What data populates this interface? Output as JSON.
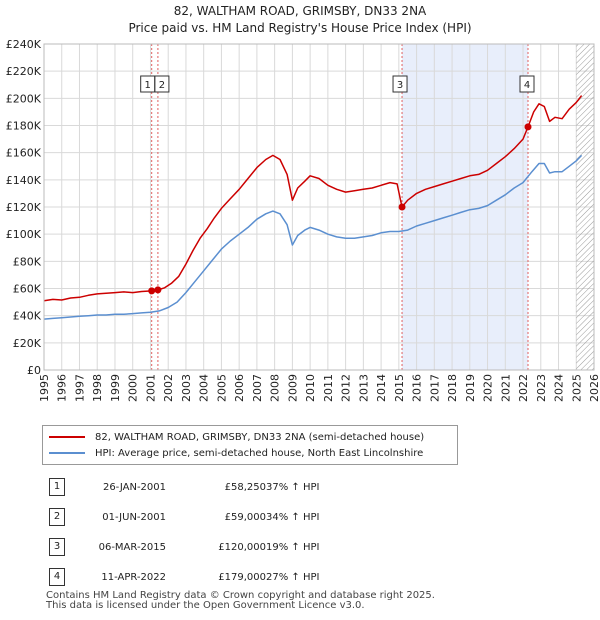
{
  "chart_data": {
    "type": "line",
    "title": "82, WALTHAM ROAD, GRIMSBY, DN33 2NA",
    "subtitle": "Price paid vs. HM Land Registry's House Price Index (HPI)",
    "xlim": [
      1995,
      2026
    ],
    "ylim": [
      0,
      240000
    ],
    "x_ticks": [
      "1995",
      "1996",
      "1997",
      "1998",
      "1999",
      "2000",
      "2001",
      "2002",
      "2003",
      "2004",
      "2005",
      "2006",
      "2007",
      "2008",
      "2009",
      "2010",
      "2011",
      "2012",
      "2013",
      "2014",
      "2015",
      "2016",
      "2017",
      "2018",
      "2019",
      "2020",
      "2021",
      "2022",
      "2023",
      "2024",
      "2025",
      "2026"
    ],
    "y_ticks": [
      {
        "value": 0,
        "label": "£0"
      },
      {
        "value": 20000,
        "label": "£20K"
      },
      {
        "value": 40000,
        "label": "£40K"
      },
      {
        "value": 60000,
        "label": "£60K"
      },
      {
        "value": 80000,
        "label": "£80K"
      },
      {
        "value": 100000,
        "label": "£100K"
      },
      {
        "value": 120000,
        "label": "£120K"
      },
      {
        "value": 140000,
        "label": "£140K"
      },
      {
        "value": 160000,
        "label": "£160K"
      },
      {
        "value": 180000,
        "label": "£180K"
      },
      {
        "value": 200000,
        "label": "£200K"
      },
      {
        "value": 220000,
        "label": "£220K"
      },
      {
        "value": 240000,
        "label": "£240K"
      }
    ],
    "grid": true,
    "shaded_ranges": [
      [
        2015.18,
        2022.28
      ]
    ],
    "hatched_from": 2025.0,
    "series": [
      {
        "name": "82, WALTHAM ROAD, GRIMSBY, DN33 2NA (semi-detached house)",
        "color": "#cc0000",
        "points": [
          [
            1995.0,
            51000
          ],
          [
            1995.5,
            52000
          ],
          [
            1996.0,
            51500
          ],
          [
            1996.5,
            53000
          ],
          [
            1997.0,
            53500
          ],
          [
            1997.5,
            55000
          ],
          [
            1998.0,
            56000
          ],
          [
            1998.5,
            56500
          ],
          [
            1999.0,
            57000
          ],
          [
            1999.5,
            57500
          ],
          [
            2000.0,
            57000
          ],
          [
            2000.5,
            57800
          ],
          [
            2001.07,
            58250
          ],
          [
            2001.42,
            59000
          ],
          [
            2001.8,
            60500
          ],
          [
            2002.2,
            64000
          ],
          [
            2002.6,
            69000
          ],
          [
            2003.0,
            78000
          ],
          [
            2003.4,
            88000
          ],
          [
            2003.8,
            97000
          ],
          [
            2004.2,
            104000
          ],
          [
            2004.6,
            112000
          ],
          [
            2005.0,
            119000
          ],
          [
            2005.5,
            126000
          ],
          [
            2006.0,
            133000
          ],
          [
            2006.5,
            141000
          ],
          [
            2007.0,
            149000
          ],
          [
            2007.5,
            155000
          ],
          [
            2007.9,
            158000
          ],
          [
            2008.3,
            155000
          ],
          [
            2008.7,
            144000
          ],
          [
            2009.0,
            125000
          ],
          [
            2009.3,
            134000
          ],
          [
            2009.7,
            139000
          ],
          [
            2010.0,
            143000
          ],
          [
            2010.5,
            141000
          ],
          [
            2011.0,
            136000
          ],
          [
            2011.5,
            133000
          ],
          [
            2012.0,
            131000
          ],
          [
            2012.5,
            132000
          ],
          [
            2013.0,
            133000
          ],
          [
            2013.5,
            134000
          ],
          [
            2014.0,
            136000
          ],
          [
            2014.5,
            138000
          ],
          [
            2014.9,
            137000
          ],
          [
            2015.18,
            120000
          ],
          [
            2015.5,
            125000
          ],
          [
            2016.0,
            130000
          ],
          [
            2016.5,
            133000
          ],
          [
            2017.0,
            135000
          ],
          [
            2017.5,
            137000
          ],
          [
            2018.0,
            139000
          ],
          [
            2018.5,
            141000
          ],
          [
            2019.0,
            143000
          ],
          [
            2019.5,
            144000
          ],
          [
            2020.0,
            147000
          ],
          [
            2020.5,
            152000
          ],
          [
            2021.0,
            157000
          ],
          [
            2021.5,
            163000
          ],
          [
            2022.0,
            170000
          ],
          [
            2022.28,
            179000
          ],
          [
            2022.6,
            190000
          ],
          [
            2022.9,
            196000
          ],
          [
            2023.2,
            194000
          ],
          [
            2023.5,
            183000
          ],
          [
            2023.8,
            186000
          ],
          [
            2024.2,
            185000
          ],
          [
            2024.6,
            192000
          ],
          [
            2025.0,
            197000
          ],
          [
            2025.3,
            202000
          ]
        ]
      },
      {
        "name": "HPI: Average price, semi-detached house, North East Lincolnshire",
        "color": "#5b8fd0",
        "points": [
          [
            1995.0,
            37500
          ],
          [
            1995.5,
            38000
          ],
          [
            1996.0,
            38500
          ],
          [
            1996.5,
            39000
          ],
          [
            1997.0,
            39500
          ],
          [
            1997.5,
            40000
          ],
          [
            1998.0,
            40500
          ],
          [
            1998.5,
            40500
          ],
          [
            1999.0,
            41000
          ],
          [
            1999.5,
            41000
          ],
          [
            2000.0,
            41500
          ],
          [
            2000.5,
            42000
          ],
          [
            2001.0,
            42500
          ],
          [
            2001.5,
            43500
          ],
          [
            2002.0,
            46000
          ],
          [
            2002.5,
            50000
          ],
          [
            2003.0,
            57000
          ],
          [
            2003.5,
            65000
          ],
          [
            2004.0,
            73000
          ],
          [
            2004.5,
            81000
          ],
          [
            2005.0,
            89000
          ],
          [
            2005.5,
            95000
          ],
          [
            2006.0,
            100000
          ],
          [
            2006.5,
            105000
          ],
          [
            2007.0,
            111000
          ],
          [
            2007.5,
            115000
          ],
          [
            2007.9,
            117000
          ],
          [
            2008.3,
            115000
          ],
          [
            2008.7,
            107000
          ],
          [
            2009.0,
            92000
          ],
          [
            2009.3,
            99000
          ],
          [
            2009.7,
            103000
          ],
          [
            2010.0,
            105000
          ],
          [
            2010.5,
            103000
          ],
          [
            2011.0,
            100000
          ],
          [
            2011.5,
            98000
          ],
          [
            2012.0,
            97000
          ],
          [
            2012.5,
            97000
          ],
          [
            2013.0,
            98000
          ],
          [
            2013.5,
            99000
          ],
          [
            2014.0,
            101000
          ],
          [
            2014.5,
            102000
          ],
          [
            2015.0,
            102000
          ],
          [
            2015.5,
            103000
          ],
          [
            2016.0,
            106000
          ],
          [
            2016.5,
            108000
          ],
          [
            2017.0,
            110000
          ],
          [
            2017.5,
            112000
          ],
          [
            2018.0,
            114000
          ],
          [
            2018.5,
            116000
          ],
          [
            2019.0,
            118000
          ],
          [
            2019.5,
            119000
          ],
          [
            2020.0,
            121000
          ],
          [
            2020.5,
            125000
          ],
          [
            2021.0,
            129000
          ],
          [
            2021.5,
            134000
          ],
          [
            2022.0,
            138000
          ],
          [
            2022.5,
            146000
          ],
          [
            2022.9,
            152000
          ],
          [
            2023.2,
            152000
          ],
          [
            2023.5,
            145000
          ],
          [
            2023.8,
            146000
          ],
          [
            2024.2,
            146000
          ],
          [
            2024.6,
            150000
          ],
          [
            2025.0,
            154000
          ],
          [
            2025.3,
            158000
          ]
        ]
      }
    ],
    "sales": [
      {
        "num": "1",
        "date": "26-JAN-2001",
        "price": "£58,250",
        "hpi": "37% ↑ HPI",
        "x": 2001.07,
        "value": 58250
      },
      {
        "num": "2",
        "date": "01-JUN-2001",
        "price": "£59,000",
        "hpi": "34% ↑ HPI",
        "x": 2001.42,
        "value": 59000
      },
      {
        "num": "3",
        "date": "06-MAR-2015",
        "price": "£120,000",
        "hpi": "19% ↑ HPI",
        "x": 2015.18,
        "value": 120000
      },
      {
        "num": "4",
        "date": "11-APR-2022",
        "price": "£179,000",
        "hpi": "27% ↑ HPI",
        "x": 2022.28,
        "value": 179000
      }
    ]
  },
  "legend": {
    "property_label": "82, WALTHAM ROAD, GRIMSBY, DN33 2NA (semi-detached house)",
    "hpi_label": "HPI: Average price, semi-detached house, North East Lincolnshire"
  },
  "footer": {
    "line1": "Contains HM Land Registry data © Crown copyright and database right 2025.",
    "line2": "This data is licensed under the Open Government Licence v3.0."
  },
  "colors": {
    "property": "#cc0000",
    "hpi": "#5b8fd0",
    "shade": "#e8eefb",
    "grid": "#d9d9d9",
    "marker_line": "#e06060"
  }
}
